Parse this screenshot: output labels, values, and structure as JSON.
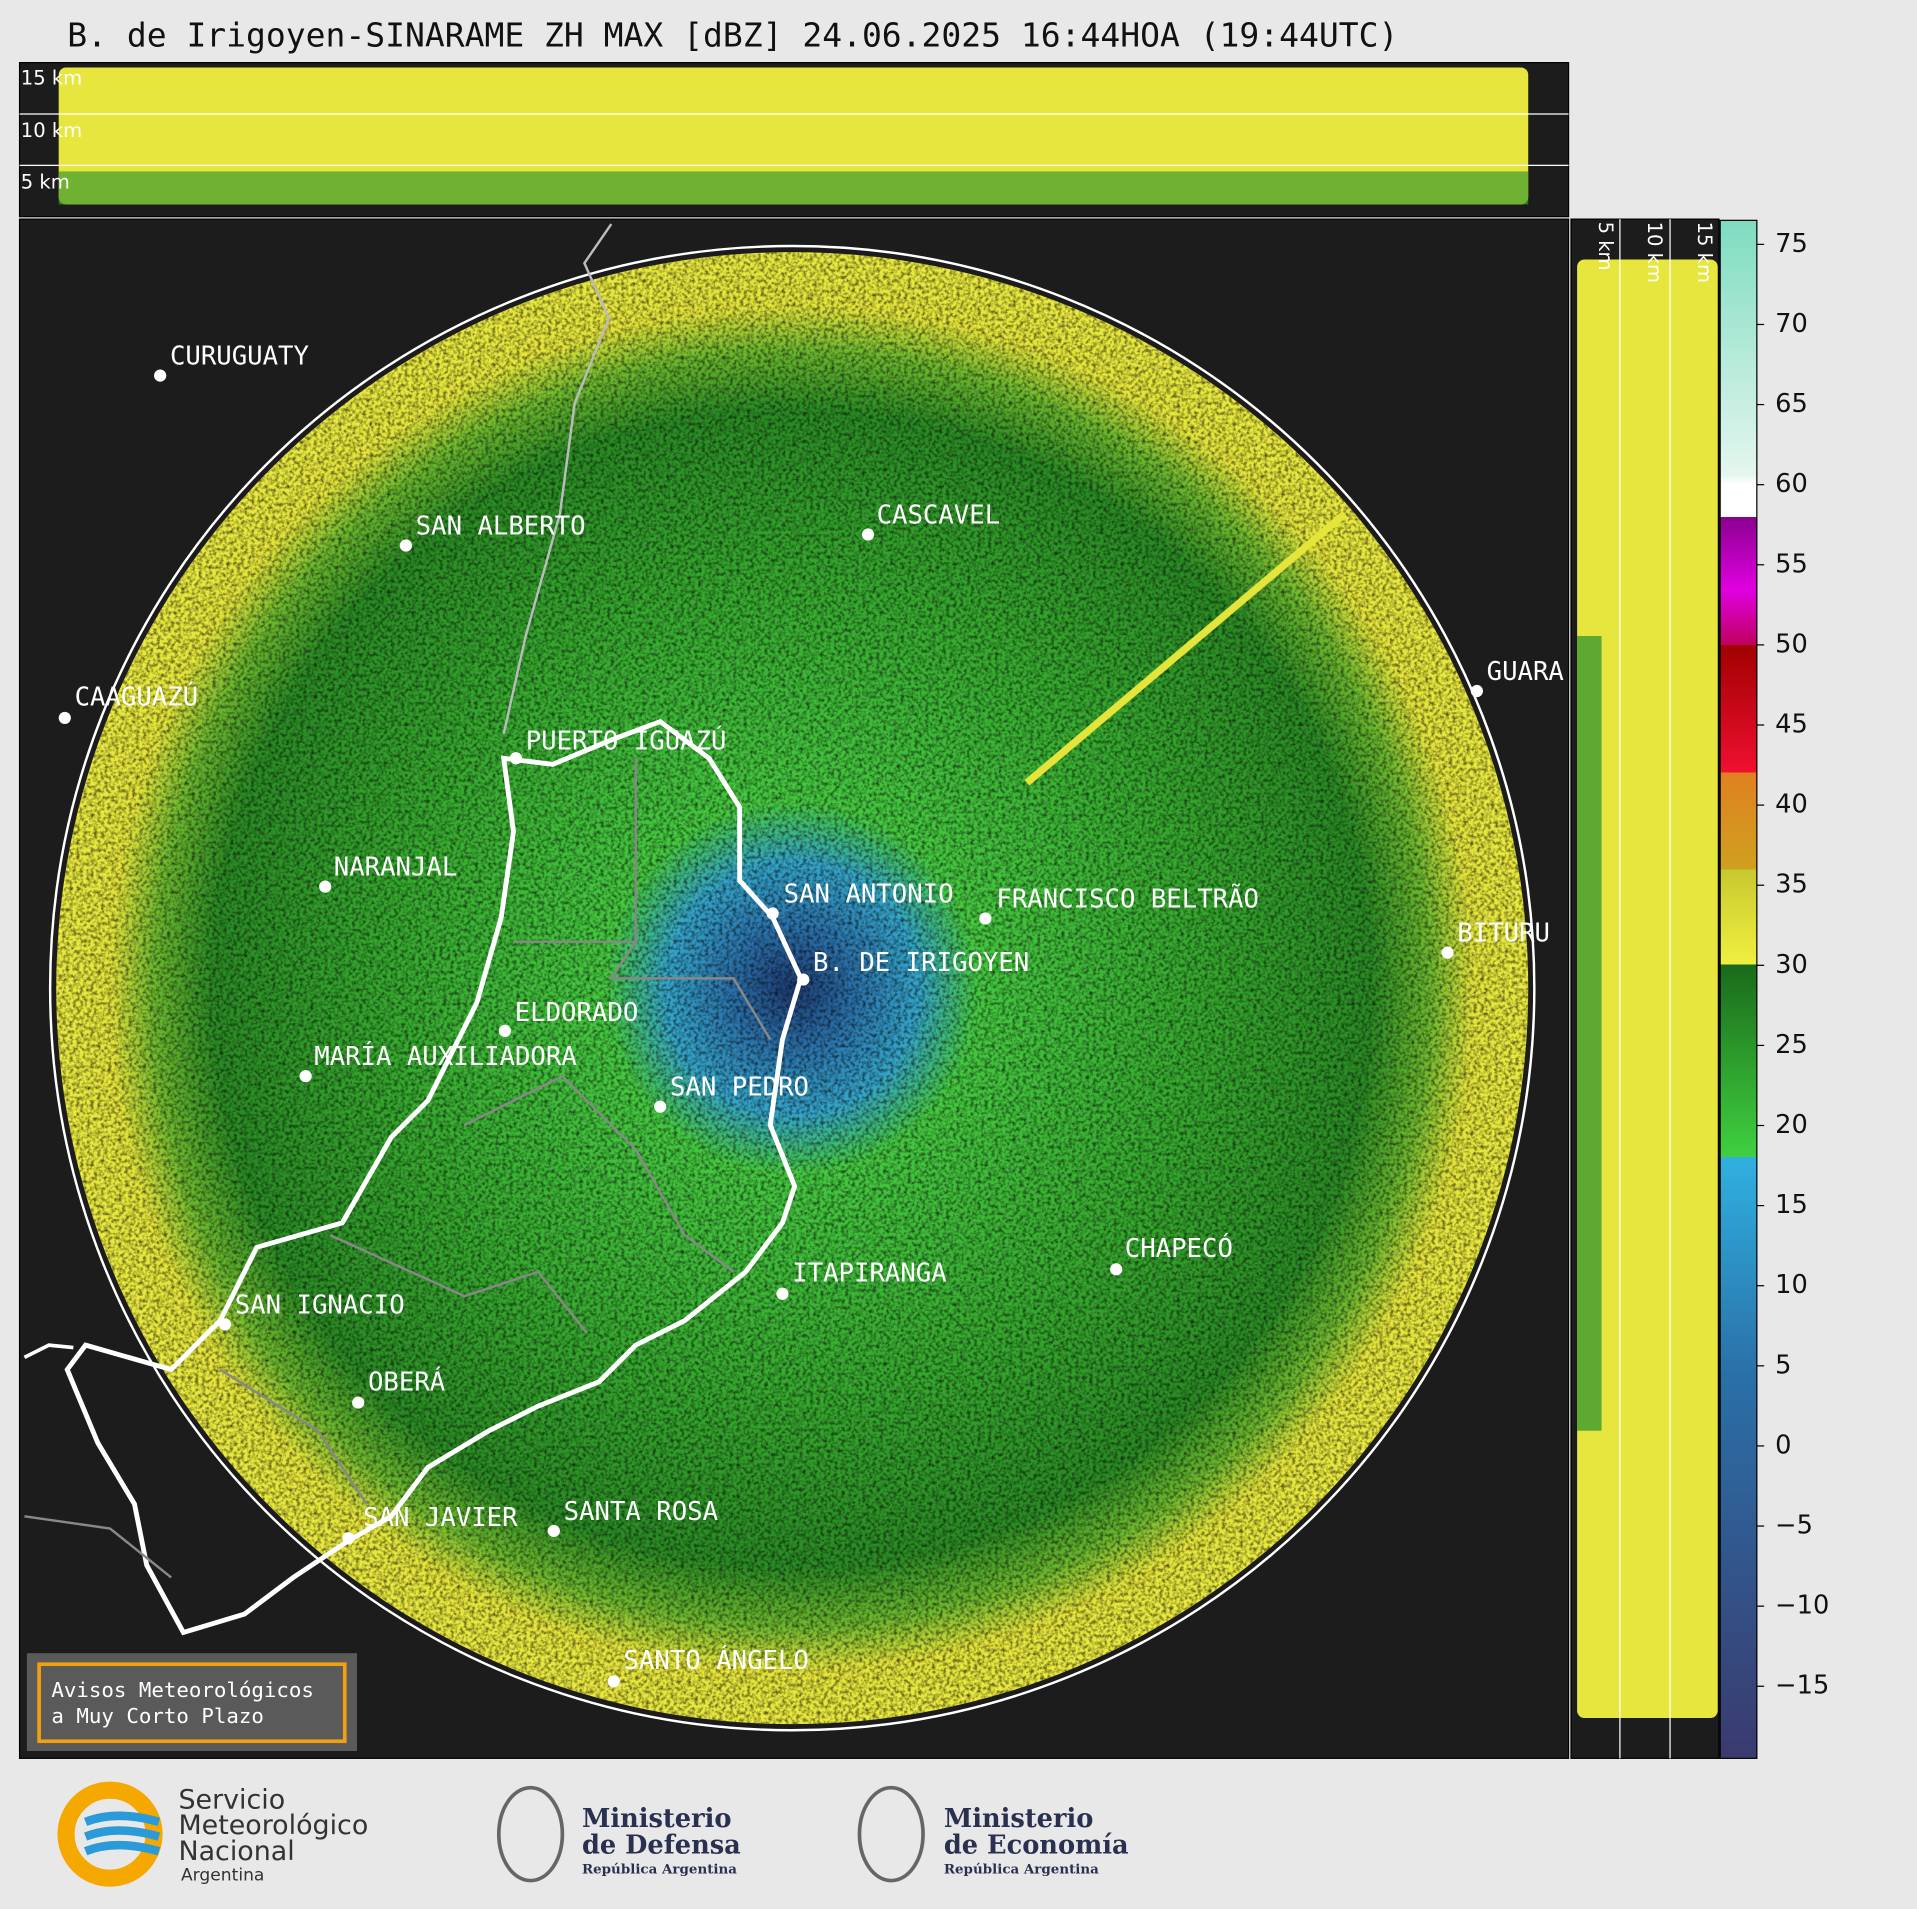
{
  "title": "B. de Irigoyen-SINARAME ZH MAX [dBZ] 24.06.2025 16:44HOA (19:44UTC)",
  "height_panels": {
    "top_labels": [
      "15 km",
      "10 km",
      "5 km"
    ],
    "side_labels": [
      "5 km",
      "10 km",
      "15 km"
    ]
  },
  "cities": [
    "CURUGUATY",
    "SAN ALBERTO",
    "CASCAVEL",
    "CAAGUAZÚ",
    "PUERTO IGUAZÚ",
    "GUARA",
    "NARANJAL",
    "SAN ANTONIO",
    "FRANCISCO BELTRÃO",
    "BITURU",
    "B. DE IRIGOYEN",
    "ELDORADO",
    "MARÍA AUXILIADORA",
    "SAN PEDRO",
    "ITAPIRANGA",
    "CHAPECÓ",
    "SAN IGNACIO",
    "OBERÁ",
    "SAN JAVIER",
    "SANTA ROSA",
    "SANTO ÁNGELO"
  ],
  "colorbar": {
    "range": [
      -19.5,
      76.5
    ],
    "ticks": [
      75,
      70,
      65,
      60,
      55,
      50,
      45,
      40,
      35,
      30,
      25,
      20,
      15,
      10,
      5,
      0,
      {
        "value": -5,
        "label": "−5"
      },
      {
        "value": -10,
        "label": "−10"
      },
      {
        "value": -15,
        "label": "−15"
      }
    ]
  },
  "notice": [
    "Avisos Meteorológicos",
    "a Muy Corto Plazo"
  ],
  "logos": {
    "smn": [
      "Servicio",
      "Meteorológico",
      "Nacional",
      "Argentina"
    ],
    "defensa": [
      "Ministerio",
      "de Defensa",
      "República Argentina"
    ],
    "economia": [
      "Ministerio",
      "de Economía",
      "República Argentina"
    ]
  }
}
